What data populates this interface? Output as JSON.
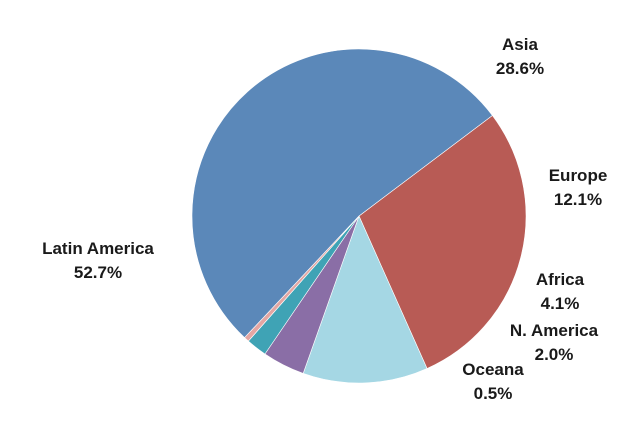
{
  "chart_data": {
    "type": "pie",
    "title": "",
    "start_angle_deg": -37,
    "direction": "clockwise",
    "slices": [
      {
        "label": "Asia",
        "value": 28.6,
        "value_label": "28.6%",
        "color": "#b85b55"
      },
      {
        "label": "Europe",
        "value": 12.1,
        "value_label": "12.1%",
        "color": "#a5d7e4"
      },
      {
        "label": "Africa",
        "value": 4.1,
        "value_label": "4.1%",
        "color": "#8a6ea6"
      },
      {
        "label": "N. America",
        "value": 2.0,
        "value_label": "2.0%",
        "color": "#3fa3b5"
      },
      {
        "label": "Oceana",
        "value": 0.5,
        "value_label": "0.5%",
        "color": "#e3a6a3"
      },
      {
        "label": "Latin America",
        "value": 52.7,
        "value_label": "52.7%",
        "color": "#5b88b9"
      }
    ]
  }
}
